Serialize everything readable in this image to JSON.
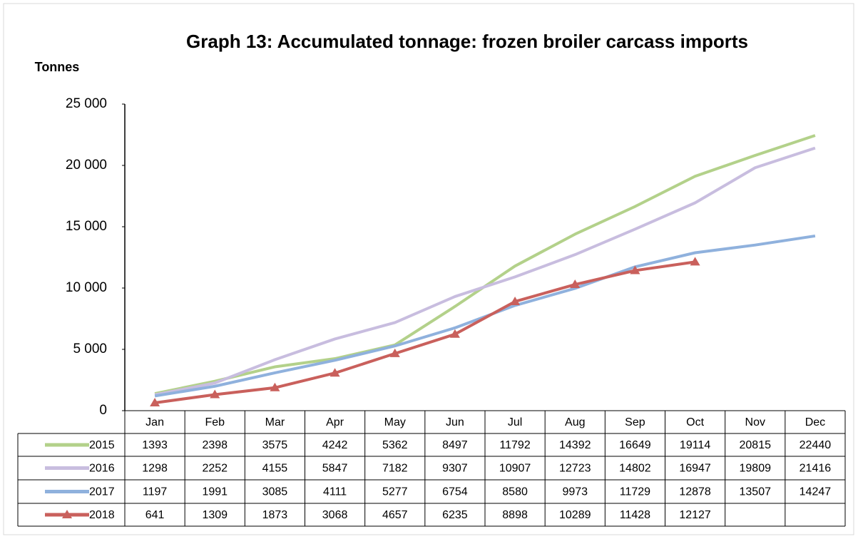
{
  "chart_data": {
    "type": "line",
    "title": "Graph 13: Accumulated tonnage: frozen broiler carcass imports",
    "y_label": "Tonnes",
    "categories": [
      "Jan",
      "Feb",
      "Mar",
      "Apr",
      "May",
      "Jun",
      "Jul",
      "Aug",
      "Sep",
      "Oct",
      "Nov",
      "Dec"
    ],
    "series": [
      {
        "name": "2015",
        "color": "#b3d18a",
        "values": [
          1393,
          2398,
          3575,
          4242,
          5362,
          8497,
          11792,
          14392,
          16649,
          19114,
          20815,
          22440
        ]
      },
      {
        "name": "2016",
        "color": "#c8bddf",
        "values": [
          1298,
          2252,
          4155,
          5847,
          7182,
          9307,
          10907,
          12723,
          14802,
          16947,
          19809,
          21416
        ]
      },
      {
        "name": "2017",
        "color": "#8fb1dd",
        "values": [
          1197,
          1991,
          3085,
          4111,
          5277,
          6754,
          8580,
          9973,
          11729,
          12878,
          13507,
          14247
        ]
      },
      {
        "name": "2018",
        "color": "#c9605c",
        "marker": "triangle",
        "values": [
          641,
          1309,
          1873,
          3068,
          4657,
          6235,
          8898,
          10289,
          11428,
          12127,
          null,
          null
        ]
      }
    ],
    "ylim": [
      0,
      25000
    ],
    "yticks": [
      0,
      {
        "value": 5000,
        "label": "5 000"
      },
      {
        "value": 10000,
        "label": "10 000"
      },
      {
        "value": 15000,
        "label": "15 000"
      },
      {
        "value": 20000,
        "label": "20 000"
      },
      {
        "value": 25000,
        "label": "25 000"
      }
    ],
    "data_table": true
  }
}
